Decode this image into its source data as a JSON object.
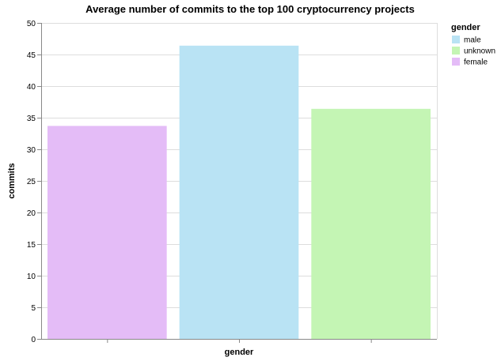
{
  "chart_data": {
    "type": "bar",
    "title": "Average number of commits to the top 100 cryptocurrency projects",
    "xlabel": "gender",
    "ylabel": "commits",
    "ylim": [
      0,
      50
    ],
    "yticks": [
      0,
      5,
      10,
      15,
      20,
      25,
      30,
      35,
      40,
      45,
      50
    ],
    "categories": [
      "female",
      "male",
      "unknown"
    ],
    "values": [
      33.7,
      46.4,
      36.4
    ],
    "colors": [
      "#e4bcf7",
      "#b9e3f4",
      "#c4f5b4"
    ],
    "grid": true,
    "x_tick_labels_visible": false,
    "legend": {
      "title": "gender",
      "position": "top-right",
      "items": [
        {
          "label": "male",
          "color": "#b9e3f4"
        },
        {
          "label": "unknown",
          "color": "#c4f5b4"
        },
        {
          "label": "female",
          "color": "#e4bcf7"
        }
      ]
    }
  }
}
